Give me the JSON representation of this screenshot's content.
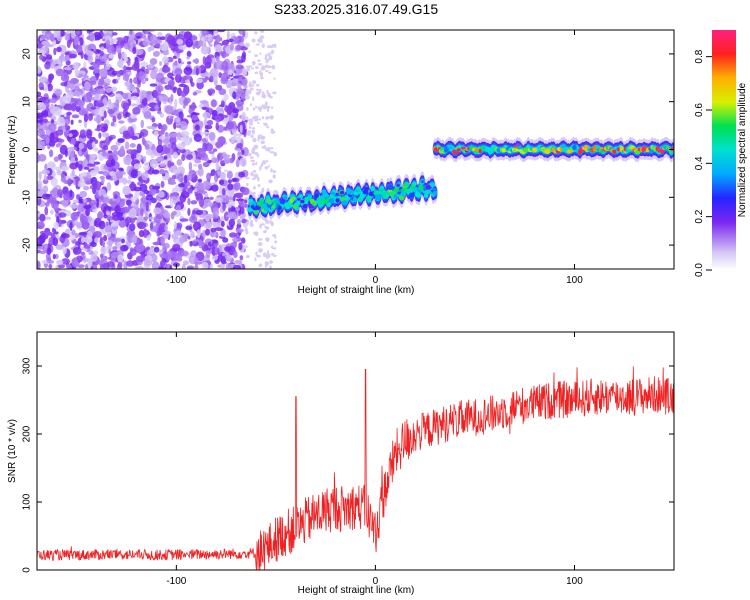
{
  "figure_title": "S233.2025.316.07.49.G15",
  "chart_data": [
    {
      "type": "heatmap",
      "title": "S233.2025.316.07.49.G15",
      "xlabel": "Height of straight line (km)",
      "ylabel": "Frequency (Hz)",
      "xlim": [
        -170,
        150
      ],
      "ylim": [
        -25,
        25
      ],
      "xticks": [
        -100,
        0,
        100
      ],
      "yticks": [
        -20,
        -10,
        0,
        10,
        20
      ],
      "colorbar": {
        "label": "Normalized spectral amplitude",
        "range": [
          0.0,
          0.9
        ],
        "ticks": [
          0.0,
          0.2,
          0.4,
          0.6,
          0.8
        ]
      },
      "noise_region": {
        "x_start": -170,
        "x_end": -65,
        "amplitude": [
          0.05,
          0.2
        ]
      },
      "segments": [
        {
          "name": "tracked-segment-1",
          "x_start": -63,
          "x_end": 30,
          "freq_start": -12,
          "freq_end": -8,
          "amplitude": [
            0.2,
            0.6
          ]
        },
        {
          "name": "tracked-segment-2",
          "x_start": 30,
          "x_end": 150,
          "freq_start": 0,
          "freq_end": 0,
          "amplitude": [
            0.3,
            0.9
          ]
        }
      ]
    },
    {
      "type": "line",
      "xlabel": "Height of straight line (km)",
      "ylabel": "SNR (10 * v/v)",
      "xlim": [
        -170,
        150
      ],
      "ylim": [
        0,
        350
      ],
      "xticks": [
        -100,
        0,
        100
      ],
      "yticks": [
        0,
        100,
        200,
        300
      ],
      "color": "#ee2222",
      "series": [
        {
          "name": "SNR",
          "x": [
            -170,
            -150,
            -130,
            -110,
            -90,
            -70,
            -60,
            -55,
            -50,
            -45,
            -40,
            -35,
            -30,
            -25,
            -20,
            -15,
            -10,
            -5,
            0,
            5,
            10,
            15,
            20,
            30,
            40,
            50,
            60,
            70,
            80,
            90,
            100,
            110,
            120,
            130,
            140,
            150
          ],
          "y": [
            22,
            22,
            23,
            22,
            23,
            24,
            25,
            30,
            45,
            55,
            60,
            72,
            80,
            88,
            92,
            90,
            95,
            90,
            55,
            120,
            170,
            190,
            200,
            210,
            220,
            225,
            230,
            240,
            245,
            250,
            250,
            255,
            255,
            255,
            258,
            255
          ]
        }
      ],
      "spikes": [
        {
          "x": -40,
          "y": 255
        },
        {
          "x": -5,
          "y": 295
        }
      ]
    }
  ]
}
